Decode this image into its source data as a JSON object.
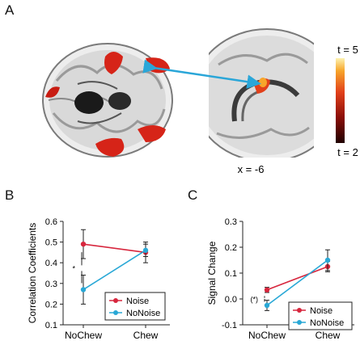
{
  "panels": {
    "a": "A",
    "b": "B",
    "c": "C"
  },
  "panel_a": {
    "colorbar_top": "t = 5",
    "colorbar_bottom": "t = 2",
    "slice_label": "x = -6",
    "colors": {
      "activation": "#d62418",
      "arrow": "#2aa6d8"
    }
  },
  "colors": {
    "noise": "#d7263d",
    "nonoise": "#29a8d6"
  },
  "chart_data": [
    {
      "type": "line",
      "panel": "B",
      "ylabel": "Correlation Coefficients",
      "xlabel": "",
      "categories": [
        "NoChew",
        "Chew"
      ],
      "ylim": [
        0.1,
        0.6
      ],
      "yticks": [
        "0.1",
        "0.2",
        "0.3",
        "0.4",
        "0.5",
        "0.6"
      ],
      "series": [
        {
          "name": "Noise",
          "values": [
            0.49,
            0.45
          ],
          "errors": [
            0.07,
            0.05
          ],
          "color": "#d7263d"
        },
        {
          "name": "NoNoise",
          "values": [
            0.27,
            0.46
          ],
          "errors": [
            0.07,
            0.03
          ],
          "color": "#29a8d6"
        }
      ],
      "annotation": "*",
      "legend": "bottom-right",
      "grid": false
    },
    {
      "type": "line",
      "panel": "C",
      "ylabel": "Signal Change",
      "xlabel": "",
      "categories": [
        "NoChew",
        "Chew"
      ],
      "ylim": [
        -0.1,
        0.3
      ],
      "yticks": [
        "-0.1",
        "0.0",
        "0.1",
        "0.2",
        "0.3"
      ],
      "series": [
        {
          "name": "Noise",
          "values": [
            0.035,
            0.125
          ],
          "errors": [
            0.01,
            0.02
          ],
          "color": "#d7263d"
        },
        {
          "name": "NoNoise",
          "values": [
            -0.025,
            0.15
          ],
          "errors": [
            0.02,
            0.04
          ],
          "color": "#29a8d6"
        }
      ],
      "annotation": "(*)",
      "legend": "bottom-right",
      "grid": false
    }
  ]
}
